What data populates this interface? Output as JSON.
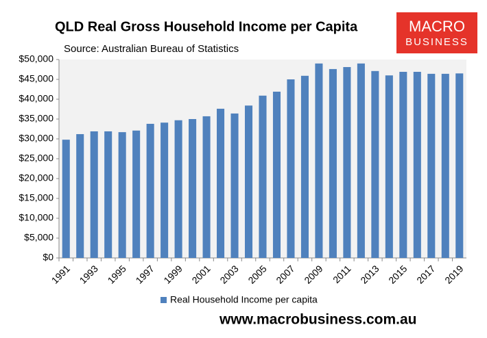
{
  "chart_data": {
    "type": "bar",
    "title": "QLD Real Gross Household Income per Capita",
    "subtitle": "Source: Australian Bureau of Statistics",
    "categories": [
      "1991",
      null,
      "1993",
      null,
      "1995",
      null,
      "1997",
      null,
      "1999",
      null,
      "2001",
      null,
      "2003",
      null,
      "2005",
      null,
      "2007",
      null,
      "2009",
      null,
      "2011",
      null,
      "2013",
      null,
      "2015",
      null,
      "2017",
      null,
      "2019"
    ],
    "series": [
      {
        "name": "Real Household Income per capita",
        "color": "#4f81bd",
        "values": [
          29800,
          31200,
          31900,
          31900,
          31700,
          32100,
          33800,
          34100,
          34700,
          35000,
          35700,
          37600,
          36400,
          38400,
          40900,
          41900,
          45000,
          45900,
          49000,
          47600,
          48100,
          49000,
          47100,
          46000,
          46900,
          46900,
          46400,
          46400,
          46500
        ]
      }
    ],
    "ylim": [
      0,
      50000
    ],
    "yticks": [
      {
        "value": 0,
        "label": "$0"
      },
      {
        "value": 5000,
        "label": "$5,000"
      },
      {
        "value": 10000,
        "label": "$10,000"
      },
      {
        "value": 15000,
        "label": "$15,000"
      },
      {
        "value": 20000,
        "label": "$20,000"
      },
      {
        "value": 25000,
        "label": "$25,000"
      },
      {
        "value": 30000,
        "label": "$30,000"
      },
      {
        "value": 35000,
        "label": "$35,000"
      },
      {
        "value": 40000,
        "label": "$40,000"
      },
      {
        "value": 45000,
        "label": "$45,000"
      },
      {
        "value": 50000,
        "label": "$50,000"
      }
    ],
    "grid": false,
    "legend": "bottom"
  },
  "branding": {
    "logo": [
      "MACRO",
      "BUSINESS"
    ],
    "website": "www.macrobusiness.com.au"
  }
}
